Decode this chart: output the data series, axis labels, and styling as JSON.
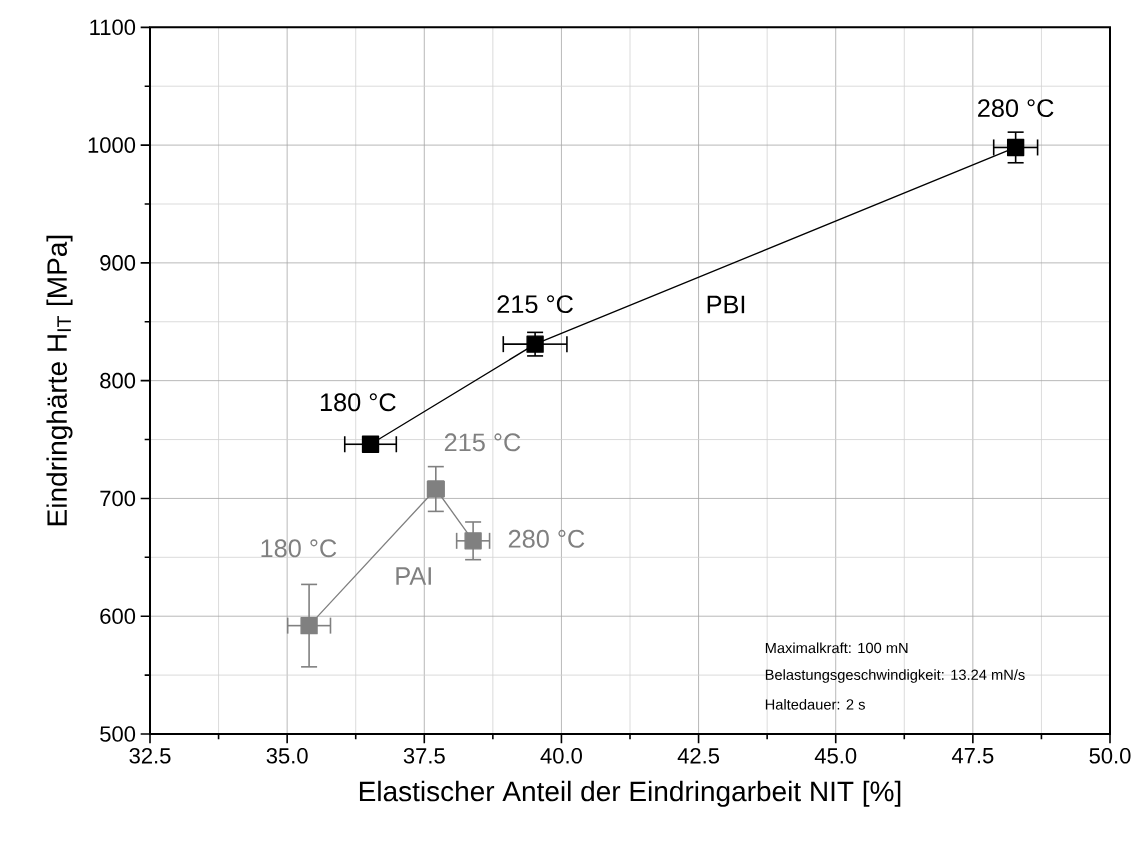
{
  "chart_data": {
    "type": "line",
    "xlabel": "Elastischer Anteil der Eindringarbeit NIT [%]",
    "ylabel": "Eindringhärte H$_{IT}$ [MPa]",
    "xlim": [
      32.5,
      50.0
    ],
    "ylim": [
      500,
      1100
    ],
    "xticks": [
      {
        "value": 32.5,
        "label": "32.5"
      },
      {
        "value": 35.0,
        "label": "35.0"
      },
      {
        "value": 37.5,
        "label": "37.5"
      },
      {
        "value": 40.0,
        "label": "40.0"
      },
      {
        "value": 42.5,
        "label": "42.5"
      },
      {
        "value": 45.0,
        "label": "45.0"
      },
      {
        "value": 47.5,
        "label": "47.5"
      },
      {
        "value": 50.0,
        "label": "50.0"
      }
    ],
    "yticks": [
      500,
      600,
      700,
      800,
      900,
      1000,
      1100
    ],
    "grid": true,
    "marker": "square",
    "line_style": "solid",
    "series": [
      {
        "name": "PBI",
        "color": "#000000",
        "x": [
          36.52,
          39.52,
          48.28
        ],
        "values": [
          746,
          831,
          998
        ],
        "errors": [
          null,
          10,
          13
        ],
        "xerrors": [
          0.47,
          0.58,
          0.4
        ]
      },
      {
        "name": "PAI",
        "color": "#808080",
        "x": [
          35.4,
          37.71,
          38.39
        ],
        "values": [
          592,
          708,
          664
        ],
        "errors": [
          35,
          19,
          16
        ],
        "xerrors": [
          0.39,
          0.15,
          0.3
        ]
      }
    ],
    "annotations": [
      {
        "text": "180 °C",
        "x": 36.52,
        "y": 746
      },
      {
        "text": "215 °C",
        "x": 39.52,
        "y": 831
      },
      {
        "text": "280 °C",
        "x": 48.28,
        "y": 998
      },
      {
        "text": "180 °C",
        "x": 35.4,
        "y": 592
      },
      {
        "text": "215 °C",
        "x": 37.71,
        "y": 708
      },
      {
        "text": "280 °C",
        "x": 38.39,
        "y": 664
      },
      "Maximalkraft: 100 mN",
      "Belastungsgeschwindigkeit: 13.24 mN/s",
      "Haltedauer: 2 s"
    ]
  }
}
